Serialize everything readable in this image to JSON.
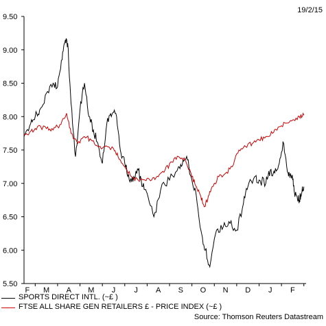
{
  "header": {
    "date": "19/2/15"
  },
  "source": "Source: Thomson Reuters Datastream",
  "chart_data": {
    "type": "line",
    "ylim": [
      5.5,
      9.5
    ],
    "yticks": [
      "5.50",
      "6.00",
      "6.50",
      "7.00",
      "7.50",
      "8.00",
      "8.50",
      "9.00",
      "9.50"
    ],
    "ytick_values": [
      5.5,
      6.0,
      6.5,
      7.0,
      7.5,
      8.0,
      8.5,
      9.0,
      9.5
    ],
    "xlim": [
      0,
      12.6
    ],
    "xticks": [
      "F",
      "M",
      "A",
      "M",
      "J",
      "J",
      "A",
      "S",
      "O",
      "N",
      "D",
      "J",
      "F"
    ],
    "xtick_positions": [
      0.15,
      1.0,
      2.0,
      3.0,
      4.0,
      5.0,
      6.0,
      7.0,
      8.0,
      9.0,
      10.0,
      11.0,
      12.0
    ],
    "grid": false,
    "legend_position": "bottom-left",
    "series": [
      {
        "name": "SPORTS DIRECT INTL. (~£ )",
        "color": "#000000",
        "x": [
          0,
          0.3,
          0.5,
          0.7,
          1.0,
          1.3,
          1.5,
          1.7,
          1.85,
          1.95,
          2.1,
          2.3,
          2.5,
          2.7,
          2.9,
          3.1,
          3.3,
          3.5,
          3.7,
          3.9,
          4.1,
          4.3,
          4.5,
          4.7,
          4.9,
          5.1,
          5.3,
          5.5,
          5.8,
          6.1,
          6.5,
          6.9,
          7.1,
          7.3,
          7.5,
          7.7,
          7.9,
          8.1,
          8.3,
          8.6,
          8.9,
          9.2,
          9.5,
          9.8,
          10.0,
          10.3,
          10.5,
          10.8,
          11.0,
          11.2,
          11.4,
          11.6,
          11.8,
          11.9,
          12.0,
          12.1,
          12.2,
          12.3,
          12.4,
          12.5
        ],
        "y": [
          7.7,
          7.9,
          8.0,
          8.1,
          8.35,
          8.5,
          8.45,
          8.85,
          9.15,
          9.1,
          8.2,
          7.4,
          8.1,
          8.5,
          8.0,
          7.8,
          7.6,
          7.3,
          7.9,
          8.0,
          8.05,
          7.5,
          7.3,
          7.05,
          7.1,
          7.2,
          6.95,
          6.85,
          6.5,
          6.9,
          7.05,
          7.25,
          7.35,
          7.35,
          7.05,
          6.8,
          6.3,
          6.0,
          5.75,
          6.3,
          6.35,
          6.4,
          6.3,
          6.7,
          6.95,
          7.1,
          7.05,
          7.0,
          7.2,
          7.15,
          7.3,
          7.6,
          7.15,
          7.15,
          7.05,
          6.8,
          6.8,
          6.75,
          6.85,
          6.95
        ]
      },
      {
        "name": "FTSE ALL SHARE GEN RETAILERS £ - PRICE INDEX (~£ )",
        "color": "#cc0000",
        "x": [
          0,
          0.3,
          0.6,
          1.0,
          1.3,
          1.6,
          1.9,
          2.1,
          2.4,
          2.7,
          3.0,
          3.3,
          3.6,
          4.0,
          4.2,
          4.5,
          4.8,
          5.1,
          5.4,
          5.7,
          6.0,
          6.3,
          6.6,
          6.9,
          7.2,
          7.5,
          7.7,
          7.9,
          8.05,
          8.2,
          8.4,
          8.7,
          9.0,
          9.3,
          9.6,
          9.9,
          10.2,
          10.5,
          10.8,
          11.1,
          11.4,
          11.7,
          12.0,
          12.3,
          12.5
        ],
        "y": [
          7.72,
          7.78,
          7.85,
          7.82,
          7.8,
          7.88,
          8.05,
          7.75,
          7.6,
          7.7,
          7.65,
          7.55,
          7.55,
          7.52,
          7.4,
          7.25,
          7.1,
          7.05,
          7.05,
          7.05,
          7.1,
          7.2,
          7.32,
          7.4,
          7.35,
          7.1,
          6.95,
          6.8,
          6.65,
          6.75,
          6.95,
          7.1,
          7.15,
          7.25,
          7.5,
          7.55,
          7.6,
          7.65,
          7.7,
          7.75,
          7.85,
          7.9,
          7.95,
          8.0,
          8.02
        ]
      }
    ]
  }
}
